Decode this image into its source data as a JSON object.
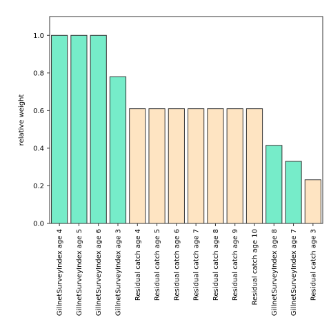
{
  "chart_data": {
    "type": "bar",
    "title": "",
    "xlabel": "",
    "ylabel": "relative weight",
    "ylim": [
      0,
      1.1
    ],
    "yticks": [
      0.0,
      0.2,
      0.4,
      0.6,
      0.8,
      1.0
    ],
    "ytick_labels": [
      "0.0",
      "0.2",
      "0.4",
      "0.6",
      "0.8",
      "1.0"
    ],
    "grid": false,
    "categories": [
      "GillnetSurveyIndex age 4",
      "GillnetSurveyIndex age 5",
      "GillnetSurveyIndex age 6",
      "GillnetSurveyIndex age 3",
      "Residual catch age 4",
      "Residual catch age 5",
      "Residual catch age 6",
      "Residual catch age 7",
      "Residual catch age 8",
      "Residual catch age 9",
      "Residual catch age 10",
      "GillnetSurveyIndex age 8",
      "GillnetSurveyIndex age 7",
      "Residual catch age 3"
    ],
    "values": [
      1.0,
      1.0,
      1.0,
      0.78,
      0.61,
      0.61,
      0.61,
      0.61,
      0.61,
      0.61,
      0.61,
      0.415,
      0.33,
      0.232
    ],
    "bar_colors": [
      "#76ecc9",
      "#76ecc9",
      "#76ecc9",
      "#76ecc9",
      "#fee4c2",
      "#fee4c2",
      "#fee4c2",
      "#fee4c2",
      "#fee4c2",
      "#fee4c2",
      "#fee4c2",
      "#76ecc9",
      "#76ecc9",
      "#fee4c2"
    ],
    "edge_color": "#333333"
  }
}
